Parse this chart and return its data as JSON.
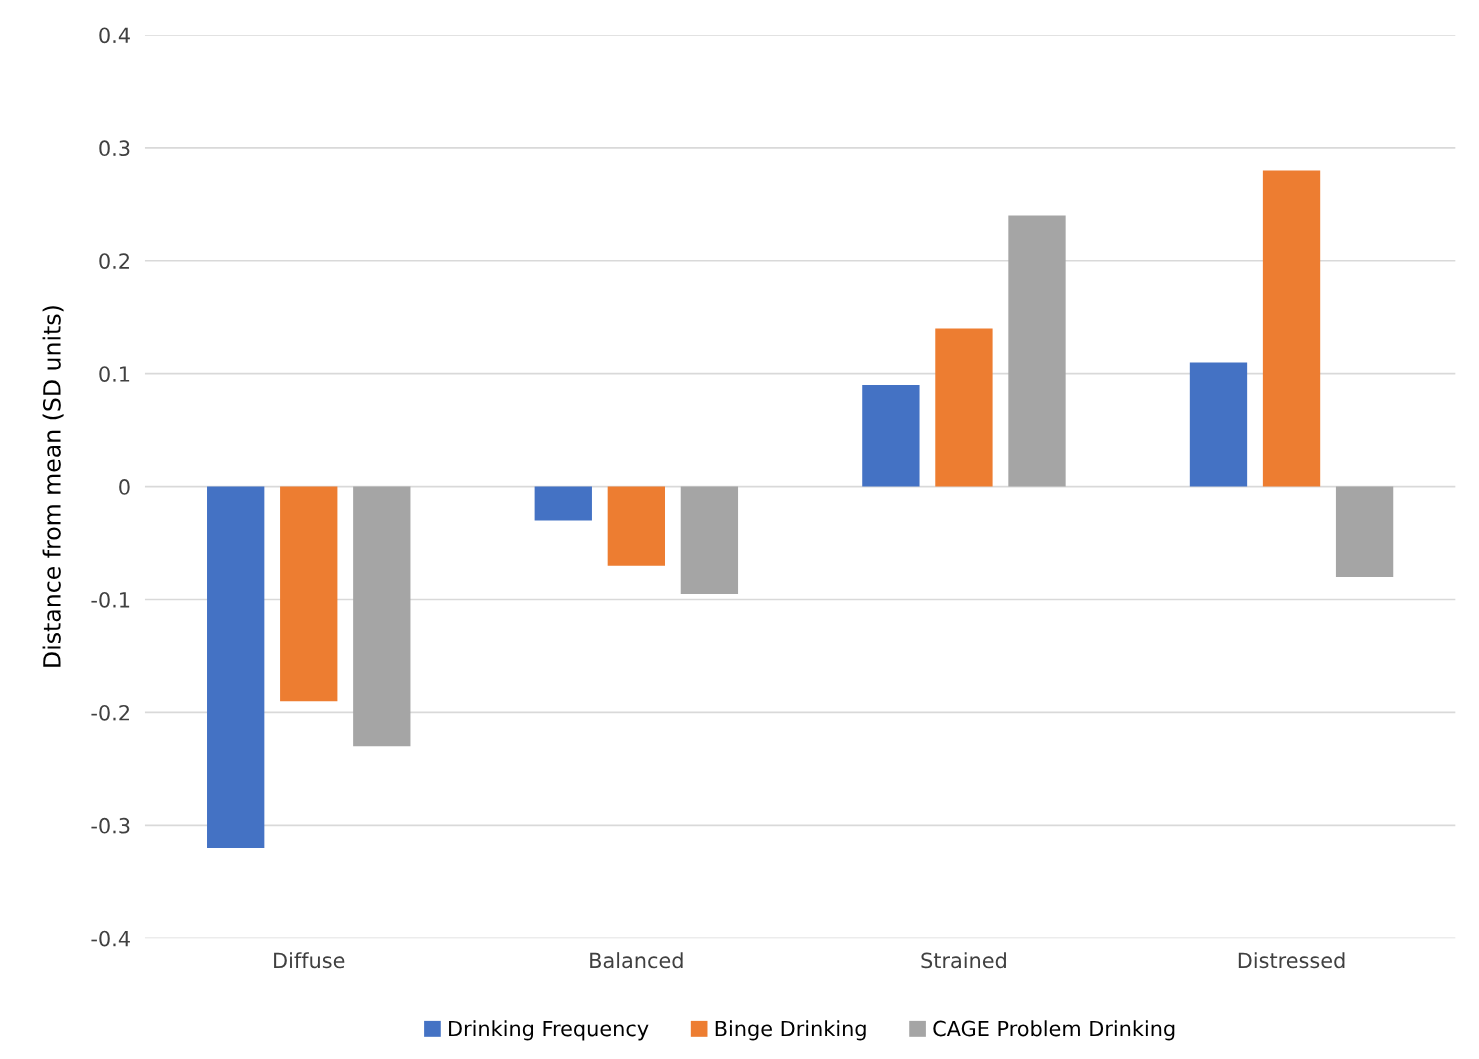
{
  "chart_data": {
    "type": "bar",
    "ylabel": "Distance from mean (SD units)",
    "categories": [
      "Diffuse",
      "Balanced",
      "Strained",
      "Distressed"
    ],
    "series": [
      {
        "name": "Drinking Frequency",
        "color": "#4472c4",
        "values": [
          -0.32,
          -0.03,
          0.09,
          0.11
        ]
      },
      {
        "name": "Binge Drinking",
        "color": "#ed7d31",
        "values": [
          -0.19,
          -0.07,
          0.14,
          0.28
        ]
      },
      {
        "name": "CAGE Problem Drinking",
        "color": "#a5a5a5",
        "values": [
          -0.23,
          -0.095,
          0.24,
          -0.08
        ]
      }
    ],
    "ylim": [
      -0.4,
      0.4
    ],
    "yticks": [
      -0.4,
      -0.3,
      -0.2,
      -0.1,
      0,
      0.1,
      0.2,
      0.3,
      0.4
    ],
    "grid": "y",
    "legend": "bottom"
  }
}
